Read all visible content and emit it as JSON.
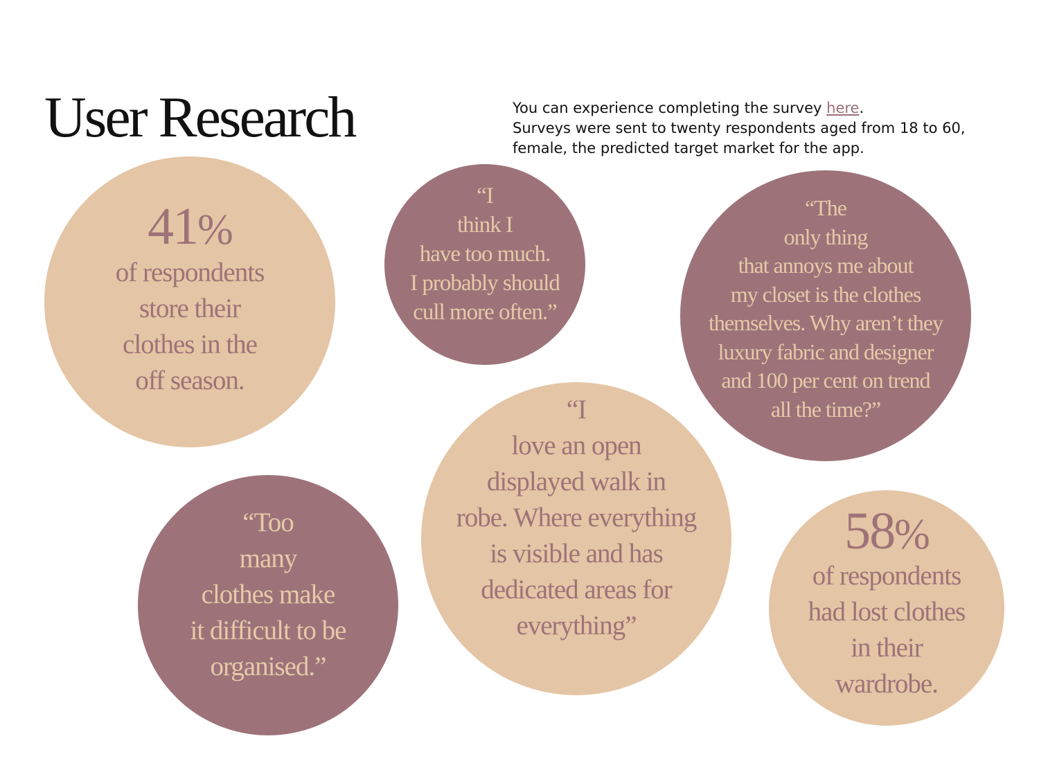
{
  "title": "User Research",
  "intro": {
    "line1_before": "You can experience completing the survey ",
    "link": "here",
    "line1_after": ".",
    "line2": "Surveys were sent to twenty respondents aged from 18 to 60, female, the predicted target market for the app."
  },
  "bubbles": {
    "stat_41": {
      "value": "41",
      "sign": "%",
      "text": "of respondents\nstore their\nclothes in the\noff season."
    },
    "quote_too_much": {
      "text": "“I\nthink I\nhave too much.\nI probably should\ncull more often.”"
    },
    "quote_annoys": {
      "text": "“The\nonly thing\nthat annoys me about\nmy closet is the clothes\nthemselves. Why aren’t they\nluxury fabric and designer\nand 100 per cent on trend\nall the time?”"
    },
    "quote_open_robe": {
      "text": "“I\nlove an open\ndisplayed walk in\nrobe. Where everything\nis visible and has\ndedicated areas for\neverything”"
    },
    "quote_too_many": {
      "text": "“Too\nmany\nclothes make\nit difficult to be\norganised.”"
    },
    "stat_58": {
      "value": "58",
      "sign": "%",
      "text": "of respondents\nhad lost clothes\nin their\nwardrobe."
    }
  },
  "colors": {
    "tan": "#e4c5a5",
    "mauve": "#9d7379",
    "title": "#111111",
    "link": "#9c7078"
  }
}
